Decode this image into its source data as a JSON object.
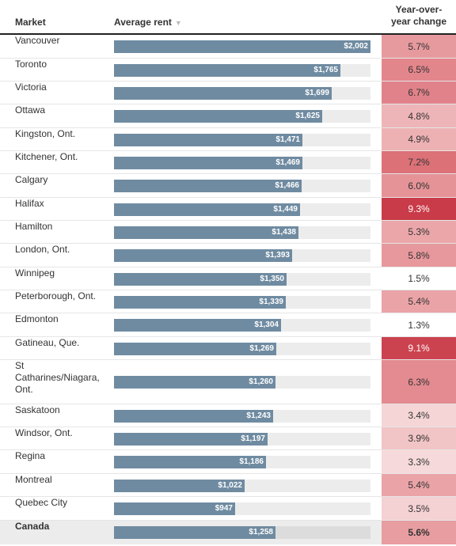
{
  "header": {
    "market": "Market",
    "rent": "Average rent",
    "sort_icon": "▼",
    "change_line1": "Year-over-",
    "change_line2": "year change"
  },
  "chart_data": {
    "type": "table",
    "columns": [
      "Market",
      "Average rent",
      "Year-over-year change"
    ],
    "rows": [
      {
        "market": "Vancouver",
        "rent": 2002,
        "rent_label": "$2,002",
        "change": 5.7,
        "change_label": "5.7%",
        "color": "#e79a9e"
      },
      {
        "market": "Toronto",
        "rent": 1765,
        "rent_label": "$1,765",
        "change": 6.5,
        "change_label": "6.5%",
        "color": "#e3868c"
      },
      {
        "market": "Victoria",
        "rent": 1699,
        "rent_label": "$1,699",
        "change": 6.7,
        "change_label": "6.7%",
        "color": "#e1828a"
      },
      {
        "market": "Ottawa",
        "rent": 1625,
        "rent_label": "$1,625",
        "change": 4.8,
        "change_label": "4.8%",
        "color": "#eeb5b8"
      },
      {
        "market": "Kingston, Ont.",
        "rent": 1471,
        "rent_label": "$1,471",
        "change": 4.9,
        "change_label": "4.9%",
        "color": "#edb1b4"
      },
      {
        "market": "Kitchener, Ont.",
        "rent": 1469,
        "rent_label": "$1,469",
        "change": 7.2,
        "change_label": "7.2%",
        "color": "#dc7178"
      },
      {
        "market": "Calgary",
        "rent": 1466,
        "rent_label": "$1,466",
        "change": 6.0,
        "change_label": "6.0%",
        "color": "#e59397"
      },
      {
        "market": "Halifax",
        "rent": 1449,
        "rent_label": "$1,449",
        "change": 9.3,
        "change_label": "9.3%",
        "color": "#c93b48"
      },
      {
        "market": "Hamilton",
        "rent": 1438,
        "rent_label": "$1,438",
        "change": 5.3,
        "change_label": "5.3%",
        "color": "#eba6a9"
      },
      {
        "market": "London, Ont.",
        "rent": 1393,
        "rent_label": "$1,393",
        "change": 5.8,
        "change_label": "5.8%",
        "color": "#e7989c"
      },
      {
        "market": "Winnipeg",
        "rent": 1350,
        "rent_label": "$1,350",
        "change": 1.5,
        "change_label": "1.5%",
        "color": "#ffffff"
      },
      {
        "market": "Peterborough, Ont.",
        "rent": 1339,
        "rent_label": "$1,339",
        "change": 5.4,
        "change_label": "5.4%",
        "color": "#eaa3a7"
      },
      {
        "market": "Edmonton",
        "rent": 1304,
        "rent_label": "$1,304",
        "change": 1.3,
        "change_label": "1.3%",
        "color": "#ffffff"
      },
      {
        "market": "Gatineau, Que.",
        "rent": 1269,
        "rent_label": "$1,269",
        "change": 9.1,
        "change_label": "9.1%",
        "color": "#cc4350"
      },
      {
        "market": "St Catharines/Niagara, Ont.",
        "rent": 1260,
        "rent_label": "$1,260",
        "change": 6.3,
        "change_label": "6.3%",
        "color": "#e38b90"
      },
      {
        "market": "Saskatoon",
        "rent": 1243,
        "rent_label": "$1,243",
        "change": 3.4,
        "change_label": "3.4%",
        "color": "#f5d5d6"
      },
      {
        "market": "Windsor, Ont.",
        "rent": 1197,
        "rent_label": "$1,197",
        "change": 3.9,
        "change_label": "3.9%",
        "color": "#f1c4c6"
      },
      {
        "market": "Regina",
        "rent": 1186,
        "rent_label": "$1,186",
        "change": 3.3,
        "change_label": "3.3%",
        "color": "#f6d9da"
      },
      {
        "market": "Montreal",
        "rent": 1022,
        "rent_label": "$1,022",
        "change": 5.4,
        "change_label": "5.4%",
        "color": "#eaa3a7"
      },
      {
        "market": "Quebec City",
        "rent": 947,
        "rent_label": "$947",
        "change": 3.5,
        "change_label": "3.5%",
        "color": "#f4d1d3"
      },
      {
        "market": "Canada",
        "rent": 1258,
        "rent_label": "$1,258",
        "change": 5.6,
        "change_label": "5.6%",
        "color": "#e89da1",
        "total": true
      }
    ],
    "rent_max": 2002
  }
}
